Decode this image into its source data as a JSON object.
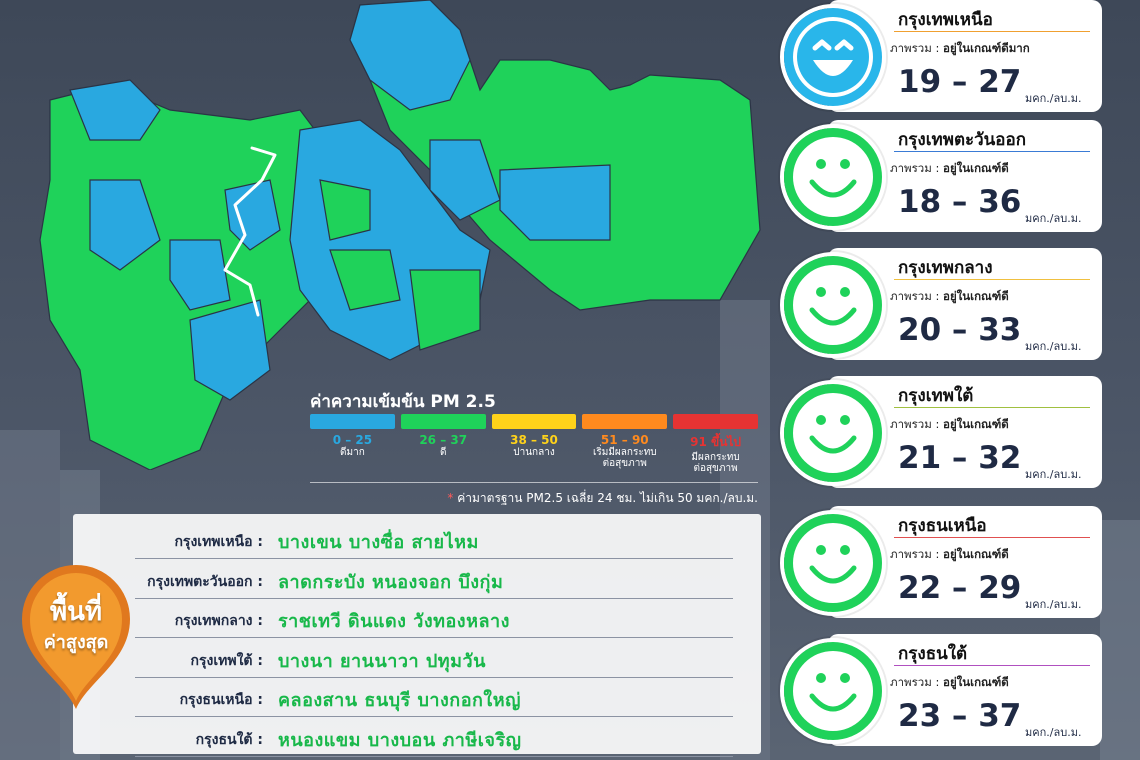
{
  "legend": {
    "title": "ค่าความเข้มข้น PM 2.5",
    "levels": [
      {
        "range": "0 – 25",
        "label1": "ดีมาก",
        "label2": "",
        "color": "#29a8e0"
      },
      {
        "range": "26 – 37",
        "label1": "ดี",
        "label2": "",
        "color": "#1fd25a"
      },
      {
        "range": "38 – 50",
        "label1": "ปานกลาง",
        "label2": "",
        "color": "#ffd21a"
      },
      {
        "range": "51 – 90",
        "label1": "เริ่มมีผลกระทบ",
        "label2": "ต่อสุขภาพ",
        "color": "#ff8a1e"
      },
      {
        "range": "91 ขึ้นไป",
        "label1": "มีผลกระทบ",
        "label2": "ต่อสุขภาพ",
        "color": "#e63333"
      }
    ],
    "note_star": "*",
    "note": "ค่ามาตรฐาน PM2.5 เฉลี่ย 24 ชม. ไม่เกิน 50 มคก./ลบ.ม."
  },
  "highest": {
    "line1": "พื้นที่",
    "line2": "ค่าสูงสุด",
    "rows": [
      {
        "zone": "กรุงเทพเหนือ :",
        "districts": "บางเขน  บางซื่อ  สายไหม"
      },
      {
        "zone": "กรุงเทพตะวันออก :",
        "districts": "ลาดกระบัง  หนองจอก  บึงกุ่ม"
      },
      {
        "zone": "กรุงเทพกลาง :",
        "districts": "ราชเทวี  ดินแดง  วังทองหลาง"
      },
      {
        "zone": "กรุงเทพใต้ :",
        "districts": "บางนา  ยานนาวา  ปทุมวัน"
      },
      {
        "zone": "กรุงธนเหนือ :",
        "districts": "คลองสาน  ธนบุรี  บางกอกใหญ่"
      },
      {
        "zone": "กรุงธนใต้ :",
        "districts": "หนองแขม  บางบอน  ภาษีเจริญ"
      }
    ]
  },
  "cards": [
    {
      "title": "กรุงเทพเหนือ",
      "status_prefix": "ภาพรวม :",
      "status": "อยู่ในเกณฑ์ดีมาก",
      "range": "19 – 27",
      "unit": "มคก./ลบ.ม.",
      "face": "very-good",
      "face_color": "#29b6ea",
      "line_color": "#f0a030"
    },
    {
      "title": "กรุงเทพตะวันออก",
      "status_prefix": "ภาพรวม :",
      "status": "อยู่ในเกณฑ์ดี",
      "range": "18 – 36",
      "unit": "มคก./ลบ.ม.",
      "face": "good",
      "face_color": "#1fd25a",
      "line_color": "#3a7bd5"
    },
    {
      "title": "กรุงเทพกลาง",
      "status_prefix": "ภาพรวม :",
      "status": "อยู่ในเกณฑ์ดี",
      "range": "20 – 33",
      "unit": "มคก./ลบ.ม.",
      "face": "good",
      "face_color": "#1fd25a",
      "line_color": "#f0c040"
    },
    {
      "title": "กรุงเทพใต้",
      "status_prefix": "ภาพรวม :",
      "status": "อยู่ในเกณฑ์ดี",
      "range": "21 – 32",
      "unit": "มคก./ลบ.ม.",
      "face": "good",
      "face_color": "#1fd25a",
      "line_color": "#a0c040"
    },
    {
      "title": "กรุงธนเหนือ",
      "status_prefix": "ภาพรวม :",
      "status": "อยู่ในเกณฑ์ดี",
      "range": "22 – 29",
      "unit": "มคก./ลบ.ม.",
      "face": "good",
      "face_color": "#1fd25a",
      "line_color": "#e05050"
    },
    {
      "title": "กรุงธนใต้",
      "status_prefix": "ภาพรวม :",
      "status": "อยู่ในเกณฑ์ดี",
      "range": "23 – 37",
      "unit": "มคก./ลบ.ม.",
      "face": "good",
      "face_color": "#1fd25a",
      "line_color": "#b050c0"
    }
  ]
}
